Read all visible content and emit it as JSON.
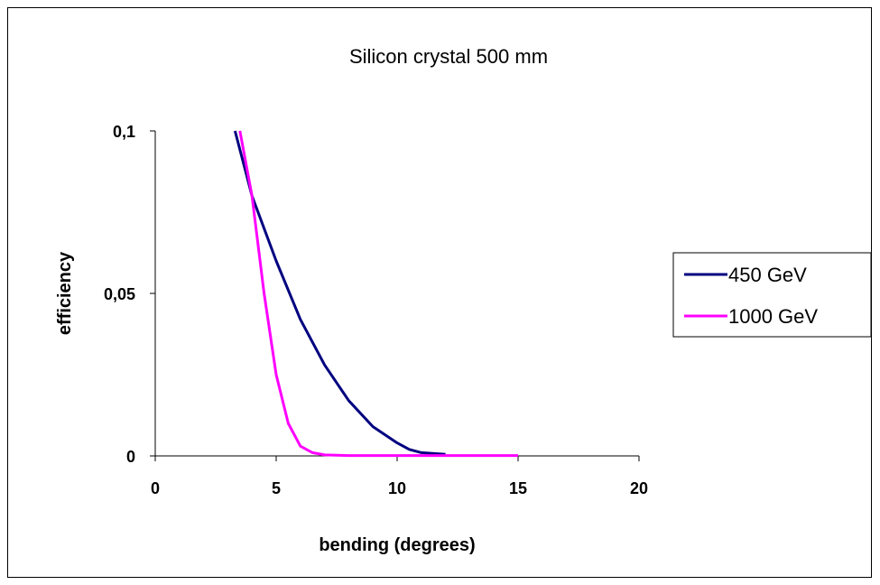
{
  "chart_data": {
    "type": "line",
    "title": "Silicon crystal 500 mm",
    "xlabel": "bending (degrees)",
    "ylabel": "efficiency",
    "xlim": [
      0,
      20
    ],
    "ylim": [
      0,
      0.1
    ],
    "x_ticks": [
      "0",
      "5",
      "10",
      "15",
      "20"
    ],
    "y_ticks": [
      "0",
      "0,05",
      "0,1"
    ],
    "grid": false,
    "legend_position": "right",
    "series": [
      {
        "name": "450 GeV",
        "color": "#000080",
        "x": [
          3.3,
          4,
          5,
          6,
          7,
          8,
          9,
          10,
          10.5,
          11,
          12
        ],
        "y": [
          0.1,
          0.08,
          0.06,
          0.042,
          0.028,
          0.017,
          0.009,
          0.004,
          0.002,
          0.001,
          0.0005
        ]
      },
      {
        "name": "1000 GeV",
        "color": "#ff00ff",
        "x": [
          3.5,
          4,
          4.5,
          5,
          5.5,
          6,
          6.5,
          7,
          8,
          15
        ],
        "y": [
          0.1,
          0.08,
          0.05,
          0.025,
          0.01,
          0.003,
          0.001,
          0.0003,
          0.0001,
          0.0001
        ]
      }
    ]
  }
}
